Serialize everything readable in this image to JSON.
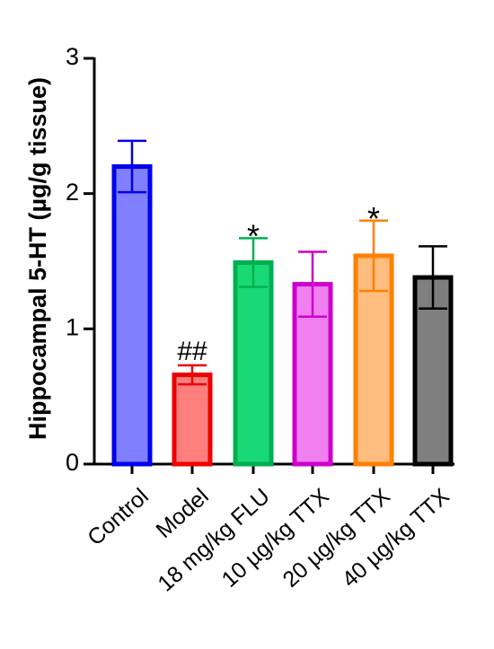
{
  "chart_data": {
    "type": "bar",
    "title": "",
    "xlabel": "",
    "ylabel": "Hippocampal 5-HT (µg/g tissue)",
    "ylim": [
      0,
      3
    ],
    "yticks": [
      "0",
      "1",
      "2",
      "3"
    ],
    "grid": false,
    "legend": "none",
    "categories": [
      "Control",
      "Model",
      "18 mg/kg FLU",
      "10 µg/kg TTX",
      "20 µg/kg TTX",
      "40 µg/kg TTX"
    ],
    "values": [
      2.2,
      0.66,
      1.49,
      1.33,
      1.54,
      1.38
    ],
    "errors": [
      0.19,
      0.07,
      0.18,
      0.24,
      0.26,
      0.23
    ],
    "annotations": [
      "",
      "##",
      "*",
      "",
      "*",
      ""
    ],
    "colors": {
      "fill": [
        "#7f7fff",
        "#ff7f7f",
        "#19d974",
        "#f07ff0",
        "#ffbe7f",
        "#7f7f7f"
      ],
      "stroke": [
        "#0000ee",
        "#ee0000",
        "#00b050",
        "#cc00cc",
        "#ff8000",
        "#000000"
      ]
    }
  }
}
